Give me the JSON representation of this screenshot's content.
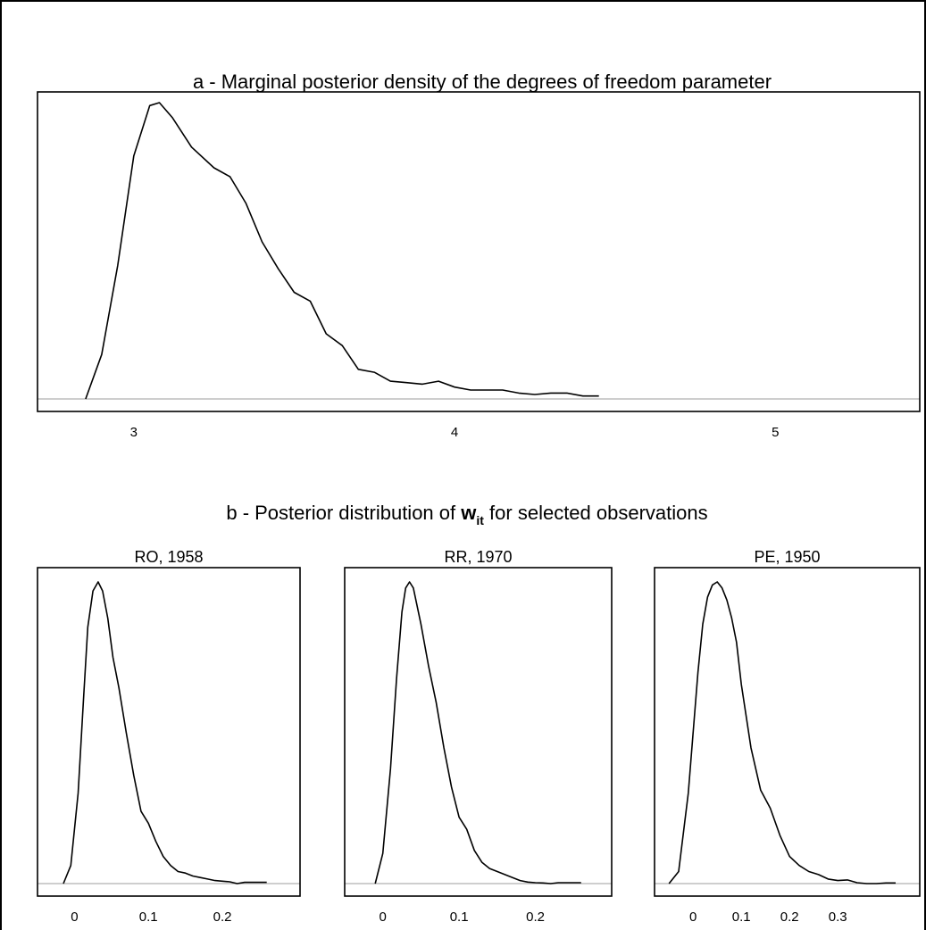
{
  "figure": {
    "panel_a_title": "a - Marginal posterior density of the degrees of freedom parameter",
    "panel_b_title_prefix": "b - Posterior distribution of ",
    "panel_b_title_var": "w",
    "panel_b_title_sub": "it",
    "panel_b_title_suffix": " for selected observations"
  },
  "chart_data": [
    {
      "type": "line",
      "title": "a - Marginal posterior density of the degrees of freedom parameter",
      "xlabel": "",
      "ylabel": "",
      "xlim": [
        2.7,
        5.45
      ],
      "ylim": [
        0,
        1
      ],
      "y_axis_shown": false,
      "grid": false,
      "baseline": true,
      "xticks": [
        3,
        4,
        5
      ],
      "xtick_labels": [
        "3",
        "4",
        "5"
      ],
      "series": [
        {
          "x": [
            2.85,
            2.9,
            2.95,
            3.0,
            3.05,
            3.08,
            3.12,
            3.18,
            3.25,
            3.3,
            3.35,
            3.4,
            3.45,
            3.5,
            3.55,
            3.6,
            3.65,
            3.7,
            3.75,
            3.8,
            3.85,
            3.9,
            3.95,
            4.0,
            4.05,
            4.1,
            4.15,
            4.2,
            4.25,
            4.3,
            4.35,
            4.4,
            4.45
          ],
          "y": [
            0.0,
            0.15,
            0.45,
            0.82,
            0.99,
            1.0,
            0.95,
            0.85,
            0.78,
            0.75,
            0.66,
            0.53,
            0.44,
            0.36,
            0.33,
            0.22,
            0.18,
            0.1,
            0.09,
            0.06,
            0.055,
            0.05,
            0.06,
            0.04,
            0.03,
            0.03,
            0.03,
            0.02,
            0.015,
            0.02,
            0.02,
            0.01,
            0.01
          ]
        }
      ]
    },
    {
      "type": "line",
      "title": "RO, 1958",
      "xlim": [
        -0.05,
        0.305
      ],
      "ylim": [
        0,
        1
      ],
      "y_axis_shown": false,
      "grid": false,
      "baseline": true,
      "xticks": [
        0,
        0.1,
        0.2
      ],
      "xtick_labels": [
        "0",
        "0.1",
        "0.2"
      ],
      "series": [
        {
          "x": [
            -0.015,
            -0.005,
            0.005,
            0.012,
            0.018,
            0.025,
            0.032,
            0.038,
            0.045,
            0.052,
            0.06,
            0.07,
            0.08,
            0.09,
            0.1,
            0.11,
            0.12,
            0.13,
            0.14,
            0.15,
            0.16,
            0.17,
            0.18,
            0.19,
            0.2,
            0.21,
            0.22,
            0.23,
            0.24,
            0.25,
            0.26
          ],
          "y": [
            0.0,
            0.06,
            0.3,
            0.6,
            0.85,
            0.97,
            1.0,
            0.97,
            0.88,
            0.75,
            0.65,
            0.5,
            0.36,
            0.24,
            0.2,
            0.14,
            0.09,
            0.06,
            0.04,
            0.035,
            0.025,
            0.02,
            0.015,
            0.01,
            0.008,
            0.006,
            0.0,
            0.004,
            0.004,
            0.004,
            0.004
          ]
        }
      ]
    },
    {
      "type": "line",
      "title": "RR, 1970",
      "xlim": [
        -0.05,
        0.3
      ],
      "ylim": [
        0,
        1
      ],
      "y_axis_shown": false,
      "grid": false,
      "baseline": true,
      "xticks": [
        0,
        0.1,
        0.2
      ],
      "xtick_labels": [
        "0",
        "0.1",
        "0.2"
      ],
      "series": [
        {
          "x": [
            -0.01,
            0.0,
            0.01,
            0.018,
            0.025,
            0.03,
            0.035,
            0.04,
            0.05,
            0.06,
            0.07,
            0.08,
            0.09,
            0.1,
            0.11,
            0.12,
            0.13,
            0.14,
            0.15,
            0.16,
            0.17,
            0.18,
            0.19,
            0.2,
            0.21,
            0.22,
            0.23,
            0.24,
            0.25,
            0.26
          ],
          "y": [
            0.0,
            0.1,
            0.38,
            0.68,
            0.9,
            0.98,
            1.0,
            0.98,
            0.86,
            0.72,
            0.6,
            0.45,
            0.32,
            0.22,
            0.18,
            0.11,
            0.07,
            0.05,
            0.04,
            0.03,
            0.02,
            0.01,
            0.005,
            0.003,
            0.002,
            0.0,
            0.003,
            0.003,
            0.003,
            0.003
          ]
        }
      ]
    },
    {
      "type": "line",
      "title": "PE, 1950",
      "xlim": [
        -0.08,
        0.47
      ],
      "ylim": [
        0,
        1
      ],
      "y_axis_shown": false,
      "grid": false,
      "baseline": true,
      "xticks": [
        0,
        0.1,
        0.2,
        0.3
      ],
      "xtick_labels": [
        "0",
        "0.1",
        "0.2",
        "0.3"
      ],
      "series": [
        {
          "x": [
            -0.05,
            -0.03,
            -0.01,
            0.01,
            0.02,
            0.03,
            0.04,
            0.05,
            0.06,
            0.07,
            0.08,
            0.09,
            0.1,
            0.12,
            0.14,
            0.16,
            0.18,
            0.2,
            0.22,
            0.24,
            0.26,
            0.28,
            0.3,
            0.32,
            0.34,
            0.36,
            0.38,
            0.4,
            0.42
          ],
          "y": [
            0.0,
            0.04,
            0.3,
            0.7,
            0.86,
            0.95,
            0.99,
            1.0,
            0.98,
            0.94,
            0.88,
            0.8,
            0.66,
            0.45,
            0.31,
            0.25,
            0.16,
            0.09,
            0.06,
            0.04,
            0.03,
            0.015,
            0.01,
            0.012,
            0.003,
            0.0,
            0.0,
            0.002,
            0.002
          ]
        }
      ]
    }
  ]
}
